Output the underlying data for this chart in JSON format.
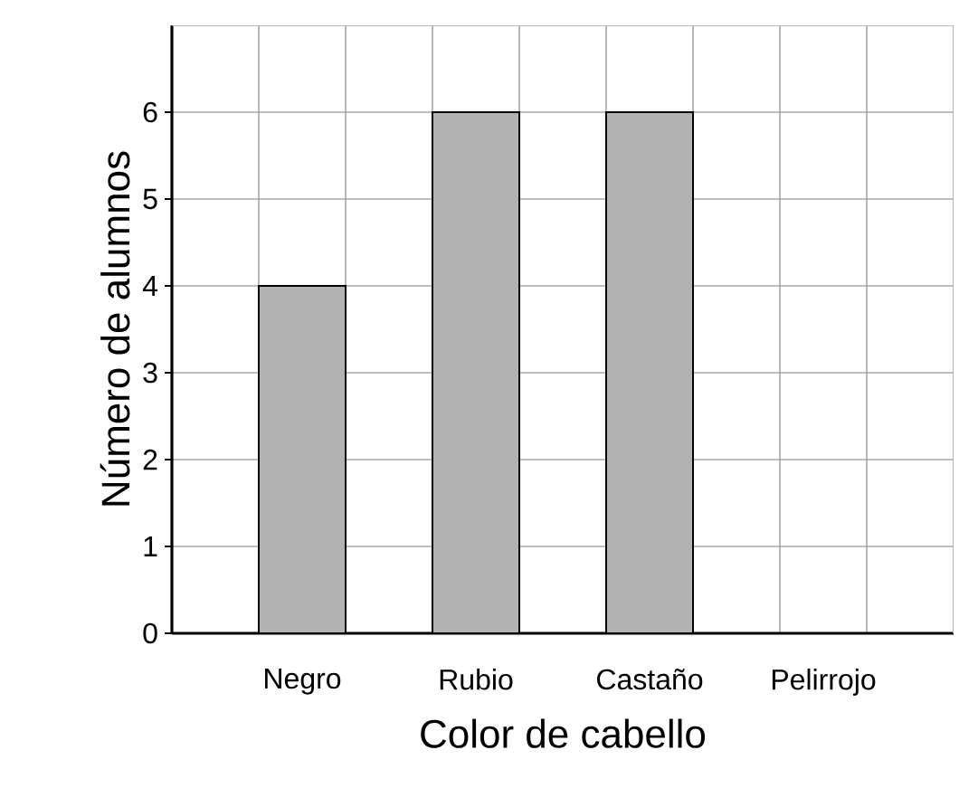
{
  "chart_data": {
    "type": "bar",
    "xlabel": "Color de cabello",
    "ylabel": "Número de alumnos",
    "categories": [
      "Negro",
      "Rubio",
      "Castaño",
      "Pelirrojo"
    ],
    "values": [
      4,
      6,
      6,
      0
    ],
    "color": "#b3b3b3",
    "ylim": [
      0,
      7
    ],
    "yticks": [
      0,
      1,
      2,
      3,
      4,
      5,
      6
    ],
    "grid": true
  }
}
